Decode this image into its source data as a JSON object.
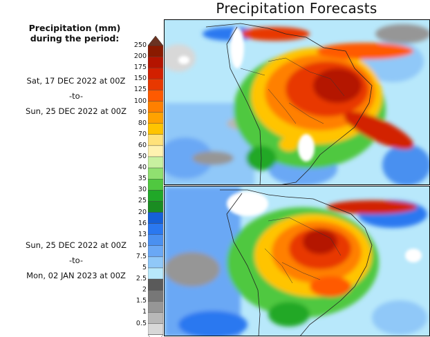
{
  "title": "Precipitation Forecasts",
  "legend": {
    "title_line1": "Precipitation (mm)",
    "title_line2": "during the period:",
    "levels": [
      "250",
      "200",
      "175",
      "150",
      "125",
      "100",
      "90",
      "80",
      "70",
      "60",
      "50",
      "40",
      "35",
      "30",
      "25",
      "20",
      "16",
      "13",
      "10",
      "7.5",
      "5",
      "2.5",
      "2",
      "1.5",
      "1",
      "0.5"
    ],
    "colors": [
      "#6b3322",
      "#8a1a00",
      "#b41400",
      "#d22000",
      "#e83800",
      "#ff5a00",
      "#ff8000",
      "#ffa200",
      "#ffc400",
      "#ffe27a",
      "#fff2b0",
      "#c8f0a0",
      "#90e070",
      "#50c840",
      "#20a828",
      "#1a8c22",
      "#1560d8",
      "#2a78f0",
      "#4a90f0",
      "#6aa8f5",
      "#90c8f8",
      "#b8e8fb",
      "#5a5a5a",
      "#777777",
      "#969696",
      "#b8b8b8",
      "#d8d8d8"
    ]
  },
  "periods": [
    {
      "start": "Sat, 17 DEC 2022 at 00Z",
      "sep": "-to-",
      "end": "Sun, 25 DEC 2022 at 00Z"
    },
    {
      "start": "Sun, 25 DEC 2022 at 00Z",
      "sep": "-to-",
      "end": "Mon, 02 JAN 2023 at 00Z"
    }
  ],
  "maps": [
    {
      "name": "forecast-map-period-1",
      "region": "South America"
    },
    {
      "name": "forecast-map-period-2",
      "region": "South America"
    }
  ]
}
